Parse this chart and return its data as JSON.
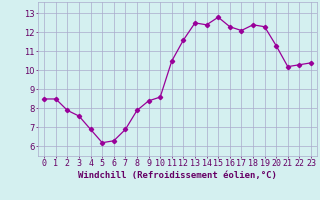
{
  "x": [
    0,
    1,
    2,
    3,
    4,
    5,
    6,
    7,
    8,
    9,
    10,
    11,
    12,
    13,
    14,
    15,
    16,
    17,
    18,
    19,
    20,
    21,
    22,
    23
  ],
  "y": [
    8.5,
    8.5,
    7.9,
    7.6,
    6.9,
    6.2,
    6.3,
    6.9,
    7.9,
    8.4,
    8.6,
    10.5,
    11.6,
    12.5,
    12.4,
    12.8,
    12.3,
    12.1,
    12.4,
    12.3,
    11.3,
    10.2,
    10.3,
    10.4
  ],
  "line_color": "#990099",
  "marker": "D",
  "markersize": 2.2,
  "linewidth": 0.9,
  "bg_color": "#d4f0f0",
  "grid_color": "#aaaacc",
  "xlabel": "Windchill (Refroidissement éolien,°C)",
  "xlabel_fontsize": 6.5,
  "xlabel_color": "#660066",
  "tick_color": "#660066",
  "tick_fontsize": 6.0,
  "ytick_values": [
    6,
    7,
    8,
    9,
    10,
    11,
    12,
    13
  ],
  "ylim": [
    5.5,
    13.6
  ],
  "xlim": [
    -0.5,
    23.5
  ]
}
